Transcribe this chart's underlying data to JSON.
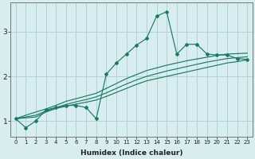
{
  "xlabel": "Humidex (Indice chaleur)",
  "ylabel": "",
  "bg_color": "#d8eeee",
  "grid_color": "#afd4d4",
  "line_color": "#1a7a6a",
  "marker_color": "#1a7a6a",
  "x_data": [
    0,
    1,
    2,
    3,
    4,
    5,
    6,
    7,
    8,
    9,
    10,
    11,
    12,
    13,
    14,
    15,
    16,
    17,
    18,
    19,
    20,
    21,
    22,
    23
  ],
  "y_main": [
    1.05,
    0.85,
    1.0,
    1.25,
    1.3,
    1.35,
    1.35,
    1.3,
    1.05,
    2.05,
    2.3,
    2.5,
    2.7,
    2.85,
    3.35,
    3.45,
    2.5,
    2.72,
    2.72,
    2.5,
    2.48,
    2.48,
    2.4,
    2.38
  ],
  "y_line1": [
    1.05,
    1.07,
    1.09,
    1.2,
    1.28,
    1.33,
    1.38,
    1.42,
    1.47,
    1.55,
    1.64,
    1.73,
    1.82,
    1.9,
    1.95,
    2.0,
    2.05,
    2.1,
    2.15,
    2.2,
    2.25,
    2.3,
    2.33,
    2.37
  ],
  "y_line2": [
    1.05,
    1.09,
    1.13,
    1.22,
    1.3,
    1.37,
    1.43,
    1.48,
    1.54,
    1.63,
    1.73,
    1.83,
    1.92,
    2.0,
    2.06,
    2.12,
    2.17,
    2.22,
    2.27,
    2.32,
    2.36,
    2.4,
    2.42,
    2.44
  ],
  "y_line3": [
    1.05,
    1.13,
    1.2,
    1.27,
    1.35,
    1.44,
    1.5,
    1.56,
    1.62,
    1.73,
    1.84,
    1.95,
    2.04,
    2.13,
    2.19,
    2.25,
    2.3,
    2.35,
    2.39,
    2.43,
    2.47,
    2.5,
    2.51,
    2.52
  ],
  "yticks": [
    1,
    2,
    3
  ],
  "ylim": [
    0.65,
    3.65
  ],
  "xlim": [
    -0.5,
    23.5
  ],
  "xtick_fontsize": 5.0,
  "ytick_fontsize": 6.5,
  "xlabel_fontsize": 6.5
}
